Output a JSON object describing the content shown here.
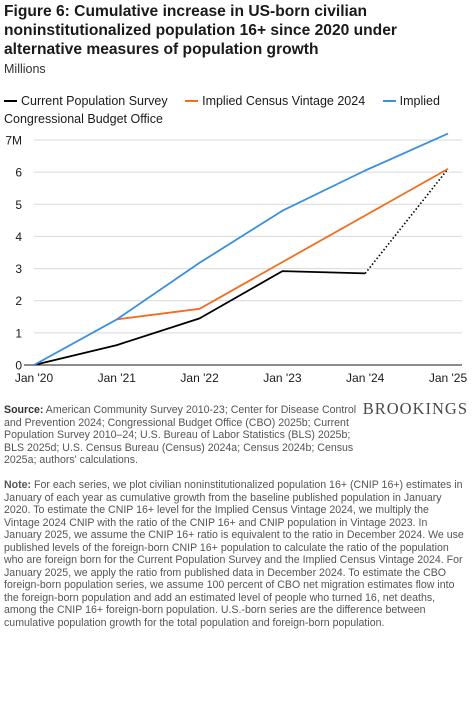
{
  "figure": {
    "title": "Figure 6: Cumulative increase in US-born civilian noninstitutionalized population 16+ since 2020 under alternative measures of population growth",
    "subtitle": "Millions",
    "brand": "BROOKINGS",
    "source_label": "Source:",
    "source_text": " American Community Survey 2010-23; Center for Disease Control and Prevention 2024; Congressional Budget Office (CBO) 2025b; Current Population Survey 2010–24; U.S. Bureau of Labor Statistics (BLS) 2025b; BLS 2025d; U.S. Census Bureau (Census) 2024a; Census 2024b; Census 2025a; authors' calculations.",
    "note_label": "Note:",
    "note_text": " For each series, we plot civilian noninstitutionalized population 16+ (CNIP 16+) estimates in January of each year as cumulative growth from the baseline published population in January 2020. To estimate the CNIP 16+ level for the Implied Census Vintage 2024, we multiply the Vintage 2024 CNIP with the ratio of the CNIP 16+ and CNIP population in Vintage 2023. In January 2025, we assume the CNIP 16+ ratio is equivalent to the ratio in December 2024. We use published levels of the foreign-born CNIP 16+ population to calculate the ratio of the population who are foreign born for the Current Population Survey and the Implied Census Vintage 2024. For January 2025, we apply the ratio from published data in December 2024. To estimate the CBO foreign-born population series, we assume 100 percent of CBO net migration estimates flow into the foreign-born population and add an estimated level of people who turned 16, net deaths, among the CNIP 16+ foreign-born population. U.S.-born series are the difference between cumulative population growth for the total population and foreign-born population."
  },
  "chart_data": {
    "type": "line",
    "categories": [
      "Jan '20",
      "Jan '21",
      "Jan '22",
      "Jan '23",
      "Jan '24",
      "Jan '25"
    ],
    "y_tick_labels": [
      "0",
      "1",
      "2",
      "3",
      "4",
      "5",
      "6",
      "7M"
    ],
    "ylim": [
      0,
      7
    ],
    "grid": true,
    "legend_position": "top",
    "series": [
      {
        "name": "Current Population Survey",
        "color": "#000000",
        "values": [
          0,
          0.62,
          1.45,
          2.92,
          2.85,
          null
        ],
        "dotted_segment": {
          "from_index": 4,
          "to_index": 5,
          "values": [
            2.85,
            6.1
          ]
        }
      },
      {
        "name": "Implied Census Vintage 2024",
        "color": "#f26c21",
        "values": [
          null,
          1.42,
          1.75,
          3.2,
          4.65,
          6.1
        ]
      },
      {
        "name": "Implied Congressional Budget Office",
        "color": "#3a8fde",
        "values": [
          0,
          1.42,
          3.18,
          4.8,
          6.05,
          7.2
        ]
      }
    ]
  }
}
